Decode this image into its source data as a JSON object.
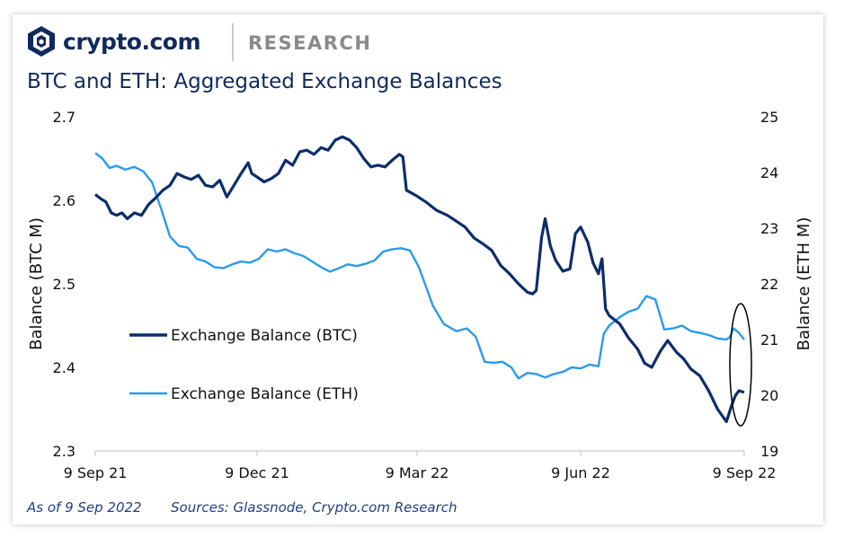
{
  "brand": {
    "name": "crypto.com",
    "section": "RESEARCH"
  },
  "colors": {
    "btc": "#0d2d6b",
    "eth": "#2b9bea",
    "title": "#102a5c"
  },
  "footer": {
    "date_note": "As of 9 Sep 2022",
    "sources": "Sources: Glassnode, Crypto.com Research"
  },
  "chart_data": {
    "type": "line",
    "title": "BTC and ETH: Aggregated Exchange Balances",
    "ylabel": "Balance (BTC M)",
    "y2label": "Balance (ETH M)",
    "ylim": [
      2.3,
      2.7
    ],
    "y2lim": [
      19,
      25
    ],
    "yticks": [
      "2.7",
      "2.6",
      "2.5",
      "2.4",
      "2.3"
    ],
    "y2ticks": [
      "25",
      "24",
      "23",
      "22",
      "21",
      "20",
      "19"
    ],
    "xticks": [
      "9 Sep 21",
      "9 Dec 21",
      "9 Mar 22",
      "9 Jun 22",
      "9 Sep 22"
    ],
    "xrange": [
      "2021-09-09",
      "2022-09-09"
    ],
    "legend_position": "left",
    "series": [
      {
        "name": "Exchange Balance (BTC)",
        "axis": "left",
        "points": [
          [
            "2021-09-09",
            2.607
          ],
          [
            "2021-09-12",
            2.602
          ],
          [
            "2021-09-15",
            2.598
          ],
          [
            "2021-09-18",
            2.585
          ],
          [
            "2021-09-21",
            2.582
          ],
          [
            "2021-09-24",
            2.585
          ],
          [
            "2021-09-27",
            2.578
          ],
          [
            "2021-10-01",
            2.585
          ],
          [
            "2021-10-05",
            2.582
          ],
          [
            "2021-10-09",
            2.595
          ],
          [
            "2021-10-13",
            2.603
          ],
          [
            "2021-10-17",
            2.612
          ],
          [
            "2021-10-21",
            2.618
          ],
          [
            "2021-10-25",
            2.632
          ],
          [
            "2021-10-29",
            2.628
          ],
          [
            "2021-11-02",
            2.625
          ],
          [
            "2021-11-06",
            2.63
          ],
          [
            "2021-11-10",
            2.618
          ],
          [
            "2021-11-14",
            2.616
          ],
          [
            "2021-11-18",
            2.624
          ],
          [
            "2021-11-22",
            2.604
          ],
          [
            "2021-11-26",
            2.618
          ],
          [
            "2021-11-30",
            2.632
          ],
          [
            "2021-12-04",
            2.645
          ],
          [
            "2021-12-06",
            2.632
          ],
          [
            "2021-12-09",
            2.628
          ],
          [
            "2021-12-13",
            2.622
          ],
          [
            "2021-12-17",
            2.626
          ],
          [
            "2021-12-21",
            2.632
          ],
          [
            "2021-12-25",
            2.648
          ],
          [
            "2021-12-29",
            2.642
          ],
          [
            "2022-01-02",
            2.658
          ],
          [
            "2022-01-06",
            2.66
          ],
          [
            "2022-01-10",
            2.655
          ],
          [
            "2022-01-14",
            2.663
          ],
          [
            "2022-01-18",
            2.66
          ],
          [
            "2022-01-22",
            2.672
          ],
          [
            "2022-01-26",
            2.676
          ],
          [
            "2022-01-30",
            2.672
          ],
          [
            "2022-02-03",
            2.663
          ],
          [
            "2022-02-07",
            2.65
          ],
          [
            "2022-02-11",
            2.64
          ],
          [
            "2022-02-15",
            2.642
          ],
          [
            "2022-02-19",
            2.64
          ],
          [
            "2022-02-23",
            2.648
          ],
          [
            "2022-02-27",
            2.655
          ],
          [
            "2022-03-01",
            2.652
          ],
          [
            "2022-03-03",
            2.612
          ],
          [
            "2022-03-09",
            2.605
          ],
          [
            "2022-03-14",
            2.598
          ],
          [
            "2022-03-20",
            2.588
          ],
          [
            "2022-03-26",
            2.582
          ],
          [
            "2022-03-31",
            2.575
          ],
          [
            "2022-04-05",
            2.568
          ],
          [
            "2022-04-10",
            2.555
          ],
          [
            "2022-04-15",
            2.548
          ],
          [
            "2022-04-20",
            2.54
          ],
          [
            "2022-04-25",
            2.522
          ],
          [
            "2022-04-30",
            2.512
          ],
          [
            "2022-05-05",
            2.5
          ],
          [
            "2022-05-10",
            2.49
          ],
          [
            "2022-05-13",
            2.488
          ],
          [
            "2022-05-15",
            2.492
          ],
          [
            "2022-05-18",
            2.555
          ],
          [
            "2022-05-20",
            2.578
          ],
          [
            "2022-05-23",
            2.545
          ],
          [
            "2022-05-26",
            2.528
          ],
          [
            "2022-05-30",
            2.515
          ],
          [
            "2022-06-03",
            2.518
          ],
          [
            "2022-06-06",
            2.56
          ],
          [
            "2022-06-09",
            2.568
          ],
          [
            "2022-06-13",
            2.55
          ],
          [
            "2022-06-16",
            2.525
          ],
          [
            "2022-06-19",
            2.512
          ],
          [
            "2022-06-21",
            2.53
          ],
          [
            "2022-06-23",
            2.47
          ],
          [
            "2022-06-25",
            2.462
          ],
          [
            "2022-07-01",
            2.452
          ],
          [
            "2022-07-06",
            2.435
          ],
          [
            "2022-07-11",
            2.422
          ],
          [
            "2022-07-15",
            2.405
          ],
          [
            "2022-07-19",
            2.4
          ],
          [
            "2022-07-24",
            2.42
          ],
          [
            "2022-07-28",
            2.432
          ],
          [
            "2022-08-02",
            2.418
          ],
          [
            "2022-08-06",
            2.41
          ],
          [
            "2022-08-10",
            2.398
          ],
          [
            "2022-08-15",
            2.39
          ],
          [
            "2022-08-20",
            2.372
          ],
          [
            "2022-08-25",
            2.35
          ],
          [
            "2022-08-30",
            2.335
          ],
          [
            "2022-09-02",
            2.355
          ],
          [
            "2022-09-04",
            2.366
          ],
          [
            "2022-09-06",
            2.372
          ],
          [
            "2022-09-09",
            2.37
          ]
        ]
      },
      {
        "name": "Exchange Balance (ETH)",
        "axis": "right",
        "points": [
          [
            "2021-09-09",
            24.35
          ],
          [
            "2021-09-13",
            24.25
          ],
          [
            "2021-09-17",
            24.08
          ],
          [
            "2021-09-21",
            24.12
          ],
          [
            "2021-09-26",
            24.05
          ],
          [
            "2021-10-01",
            24.1
          ],
          [
            "2021-10-06",
            24.02
          ],
          [
            "2021-10-11",
            23.82
          ],
          [
            "2021-10-16",
            23.35
          ],
          [
            "2021-10-21",
            22.85
          ],
          [
            "2021-10-26",
            22.68
          ],
          [
            "2021-10-31",
            22.65
          ],
          [
            "2021-11-05",
            22.45
          ],
          [
            "2021-11-10",
            22.4
          ],
          [
            "2021-11-15",
            22.3
          ],
          [
            "2021-11-20",
            22.28
          ],
          [
            "2021-11-25",
            22.35
          ],
          [
            "2021-11-30",
            22.4
          ],
          [
            "2021-12-05",
            22.38
          ],
          [
            "2021-12-10",
            22.45
          ],
          [
            "2021-12-15",
            22.62
          ],
          [
            "2021-12-20",
            22.58
          ],
          [
            "2021-12-25",
            22.62
          ],
          [
            "2021-12-30",
            22.55
          ],
          [
            "2022-01-04",
            22.5
          ],
          [
            "2022-01-09",
            22.4
          ],
          [
            "2022-01-14",
            22.3
          ],
          [
            "2022-01-19",
            22.22
          ],
          [
            "2022-01-24",
            22.28
          ],
          [
            "2022-01-29",
            22.35
          ],
          [
            "2022-02-03",
            22.32
          ],
          [
            "2022-02-08",
            22.36
          ],
          [
            "2022-02-13",
            22.42
          ],
          [
            "2022-02-18",
            22.58
          ],
          [
            "2022-02-23",
            22.62
          ],
          [
            "2022-02-28",
            22.64
          ],
          [
            "2022-03-05",
            22.6
          ],
          [
            "2022-03-10",
            22.3
          ],
          [
            "2022-03-14",
            21.95
          ],
          [
            "2022-03-18",
            21.6
          ],
          [
            "2022-03-24",
            21.28
          ],
          [
            "2022-03-31",
            21.15
          ],
          [
            "2022-04-06",
            21.2
          ],
          [
            "2022-04-11",
            21.05
          ],
          [
            "2022-04-16",
            20.6
          ],
          [
            "2022-04-21",
            20.58
          ],
          [
            "2022-04-26",
            20.6
          ],
          [
            "2022-05-01",
            20.5
          ],
          [
            "2022-05-05",
            20.3
          ],
          [
            "2022-05-10",
            20.4
          ],
          [
            "2022-05-15",
            20.38
          ],
          [
            "2022-05-20",
            20.32
          ],
          [
            "2022-05-25",
            20.38
          ],
          [
            "2022-05-30",
            20.42
          ],
          [
            "2022-06-04",
            20.5
          ],
          [
            "2022-06-09",
            20.48
          ],
          [
            "2022-06-14",
            20.55
          ],
          [
            "2022-06-19",
            20.52
          ],
          [
            "2022-06-22",
            21.1
          ],
          [
            "2022-06-25",
            21.25
          ],
          [
            "2022-07-01",
            21.4
          ],
          [
            "2022-07-06",
            21.5
          ],
          [
            "2022-07-11",
            21.55
          ],
          [
            "2022-07-16",
            21.78
          ],
          [
            "2022-07-21",
            21.72
          ],
          [
            "2022-07-26",
            21.18
          ],
          [
            "2022-07-31",
            21.2
          ],
          [
            "2022-08-05",
            21.25
          ],
          [
            "2022-08-10",
            21.15
          ],
          [
            "2022-08-15",
            21.12
          ],
          [
            "2022-08-20",
            21.08
          ],
          [
            "2022-08-25",
            21.02
          ],
          [
            "2022-08-30",
            21.0
          ],
          [
            "2022-09-01",
            21.05
          ],
          [
            "2022-09-03",
            21.2
          ],
          [
            "2022-09-06",
            21.12
          ],
          [
            "2022-09-09",
            21.0
          ]
        ]
      }
    ]
  }
}
